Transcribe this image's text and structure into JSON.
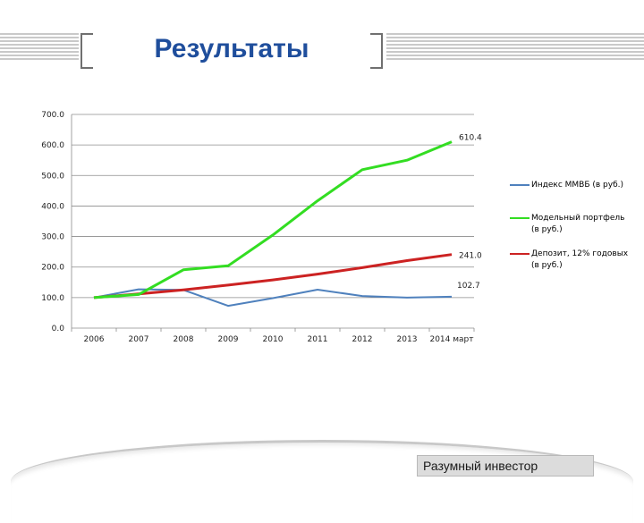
{
  "slide": {
    "title": "Результаты",
    "footer": "Разумный инвестор"
  },
  "colors": {
    "title": "#1f4e9c",
    "micex": "#4f81bd",
    "model": "#33dd22",
    "deposit": "#cc2222"
  },
  "chart_data": {
    "type": "line",
    "title": "",
    "xlabel": "",
    "ylabel": "",
    "categories": [
      "2006",
      "2007",
      "2008",
      "2009",
      "2010",
      "2011",
      "2012",
      "2013",
      "2014 март"
    ],
    "ylim": [
      0,
      700
    ],
    "yticks": [
      "0.0",
      "100.0",
      "200.0",
      "300.0",
      "400.0",
      "500.0",
      "600.0",
      "700.0"
    ],
    "grid": true,
    "legend_position": "right",
    "series": [
      {
        "name": "Индекс ММВБ (в руб.)",
        "color": "#4f81bd",
        "values": [
          100,
          127,
          125,
          73,
          98,
          126,
          105,
          100,
          102.7
        ],
        "end_label": "102.7"
      },
      {
        "name": "Модельный портфель (в руб.)",
        "color": "#33dd22",
        "values": [
          100,
          110,
          191,
          204,
          305,
          417,
          519,
          550,
          610.4
        ],
        "end_label": "610.4"
      },
      {
        "name": "Депозит, 12% годовых (в руб.)",
        "color": "#cc2222",
        "values": [
          100,
          112,
          125,
          141,
          158,
          177,
          198,
          221,
          241.0
        ],
        "end_label": "241.0"
      }
    ]
  }
}
